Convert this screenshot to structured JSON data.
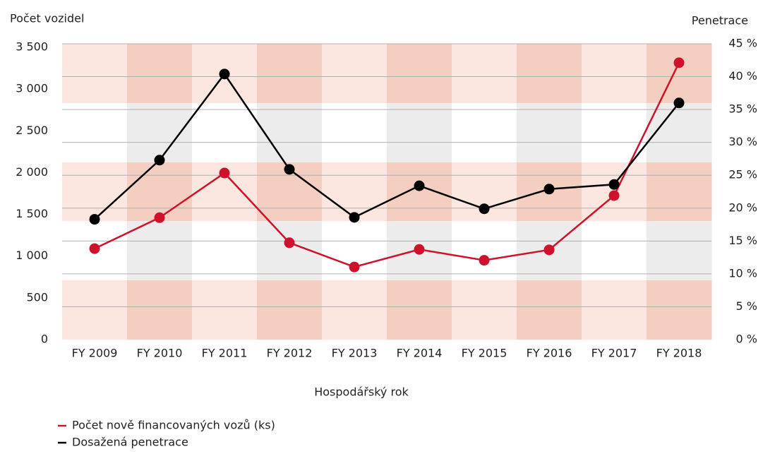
{
  "chart_data": {
    "type": "line",
    "y_label": "Počet vozidel",
    "y2_label": "Penetrace",
    "x_label": "Hospodářský rok",
    "categories": [
      "FY 2009",
      "FY 2010",
      "FY 2011",
      "FY 2012",
      "FY 2013",
      "FY 2014",
      "FY 2015",
      "FY 2016",
      "FY 2017",
      "FY 2018"
    ],
    "series": [
      {
        "name": "Počet nově financovaných vozů (ks)",
        "color": "#d0112b",
        "values": [
          1090,
          1460,
          1995,
          1160,
          870,
          1080,
          950,
          1075,
          1725,
          3315
        ]
      },
      {
        "name": "Dosažená penetrace",
        "color": "#000000",
        "axis": "y2",
        "values": [
          18.3,
          27.3,
          40.4,
          25.9,
          18.6,
          23.4,
          19.9,
          22.9,
          23.6,
          36.0
        ]
      }
    ],
    "ylim": [
      0,
      3500
    ],
    "yticks": [
      0,
      {
        "value": 500,
        "label": "500"
      },
      {
        "value": 1000,
        "label": "1 000"
      },
      {
        "value": 1500,
        "label": "1 500"
      },
      {
        "value": 2000,
        "label": "2 000"
      },
      {
        "value": 2500,
        "label": "2 500"
      },
      {
        "value": 3000,
        "label": "3 000"
      },
      {
        "value": 3500,
        "label": "3 500"
      }
    ],
    "y2lim": [
      0,
      45
    ],
    "y2ticks": [
      {
        "value": 0,
        "label": "0 %"
      },
      {
        "value": 5,
        "label": "5 %"
      },
      {
        "value": 10,
        "label": "10 %"
      },
      {
        "value": 15,
        "label": "15 %"
      },
      {
        "value": 20,
        "label": "20 %"
      },
      {
        "value": 25,
        "label": "25 %"
      },
      {
        "value": 30,
        "label": "30 %"
      },
      {
        "value": 35,
        "label": "35 %"
      },
      {
        "value": 40,
        "label": "40 %"
      },
      {
        "value": 45,
        "label": "45 %"
      }
    ],
    "grid": true
  }
}
